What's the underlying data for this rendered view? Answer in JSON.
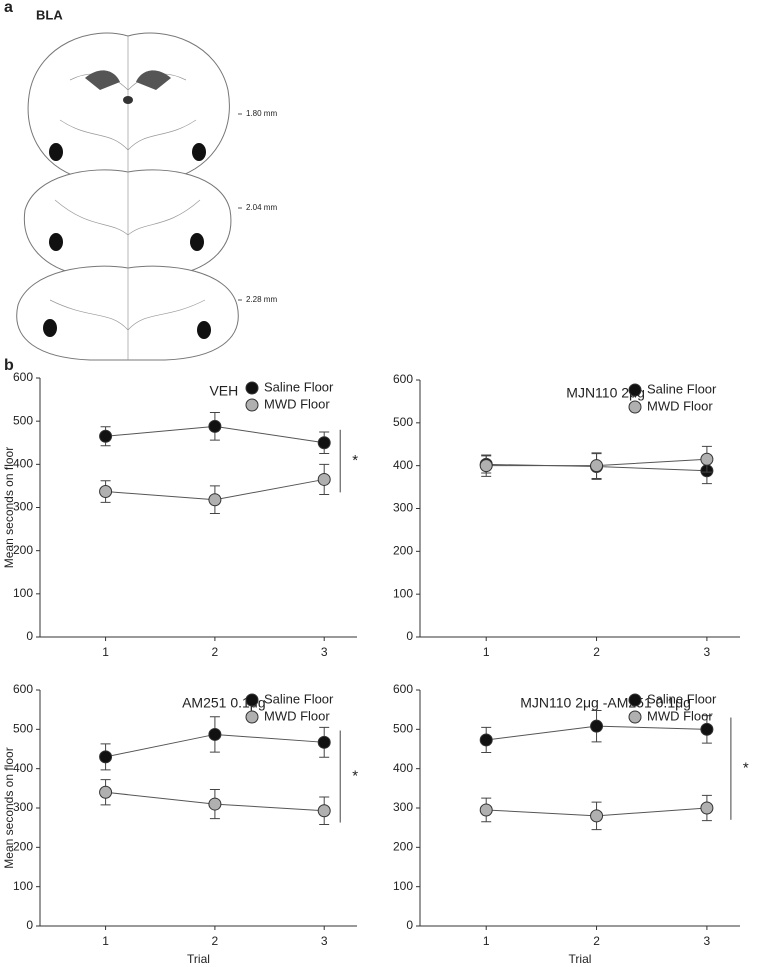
{
  "figure": {
    "panel_a": {
      "label": "a",
      "region": "BLA",
      "levels": [
        "1.80 mm",
        "2.04 mm",
        "2.28 mm"
      ]
    },
    "panel_b": {
      "label": "b"
    }
  },
  "chart_data": [
    {
      "type": "line",
      "title": "VEH",
      "ylabel": "Mean seconds on floor",
      "x": [
        1,
        2,
        3
      ],
      "xlim": [
        0.4,
        3.3
      ],
      "xticks": [
        1,
        2,
        3
      ],
      "ylim": [
        0,
        600
      ],
      "yticks": [
        0,
        100,
        200,
        300,
        400,
        500,
        600
      ],
      "annotation": "*",
      "series": [
        {
          "name": "Saline Floor",
          "color": "#111111",
          "values": [
            465,
            488,
            450
          ],
          "errors": [
            22,
            32,
            25
          ]
        },
        {
          "name": "MWD Floor",
          "color": "#b0b0b0",
          "values": [
            337,
            318,
            365
          ],
          "errors": [
            25,
            32,
            35
          ]
        }
      ]
    },
    {
      "type": "line",
      "title": "MJN110 2μg",
      "x": [
        1,
        2,
        3
      ],
      "xlim": [
        0.4,
        3.3
      ],
      "xticks": [
        1,
        2,
        3
      ],
      "ylim": [
        0,
        600
      ],
      "yticks": [
        0,
        100,
        200,
        300,
        400,
        500,
        600
      ],
      "series": [
        {
          "name": "Saline Floor",
          "color": "#111111",
          "values": [
            403,
            398,
            388
          ],
          "errors": [
            20,
            30,
            30
          ]
        },
        {
          "name": "MWD Floor",
          "color": "#b0b0b0",
          "values": [
            400,
            400,
            415
          ],
          "errors": [
            25,
            30,
            30
          ]
        }
      ]
    },
    {
      "type": "line",
      "title": "AM251 0.1μg",
      "ylabel": "Mean seconds on floor",
      "xlabel": "Trial",
      "x": [
        1,
        2,
        3
      ],
      "xlim": [
        0.4,
        3.3
      ],
      "xticks": [
        1,
        2,
        3
      ],
      "ylim": [
        0,
        600
      ],
      "yticks": [
        0,
        100,
        200,
        300,
        400,
        500,
        600
      ],
      "annotation": "*",
      "series": [
        {
          "name": "Saline Floor",
          "color": "#111111",
          "values": [
            430,
            487,
            467
          ],
          "errors": [
            33,
            45,
            38
          ]
        },
        {
          "name": "MWD Floor",
          "color": "#b0b0b0",
          "values": [
            340,
            310,
            293
          ],
          "errors": [
            32,
            37,
            35
          ]
        }
      ]
    },
    {
      "type": "line",
      "title": "MJN110 2μg -AM251 0.1μg",
      "xlabel": "Trial",
      "x": [
        1,
        2,
        3
      ],
      "xlim": [
        0.4,
        3.3
      ],
      "xticks": [
        1,
        2,
        3
      ],
      "ylim": [
        0,
        600
      ],
      "yticks": [
        0,
        100,
        200,
        300,
        400,
        500,
        600
      ],
      "annotation": "*",
      "series": [
        {
          "name": "Saline Floor",
          "color": "#111111",
          "values": [
            473,
            508,
            500
          ],
          "errors": [
            32,
            40,
            35
          ]
        },
        {
          "name": "MWD Floor",
          "color": "#b0b0b0",
          "values": [
            295,
            280,
            300
          ],
          "errors": [
            30,
            35,
            32
          ]
        }
      ]
    }
  ]
}
